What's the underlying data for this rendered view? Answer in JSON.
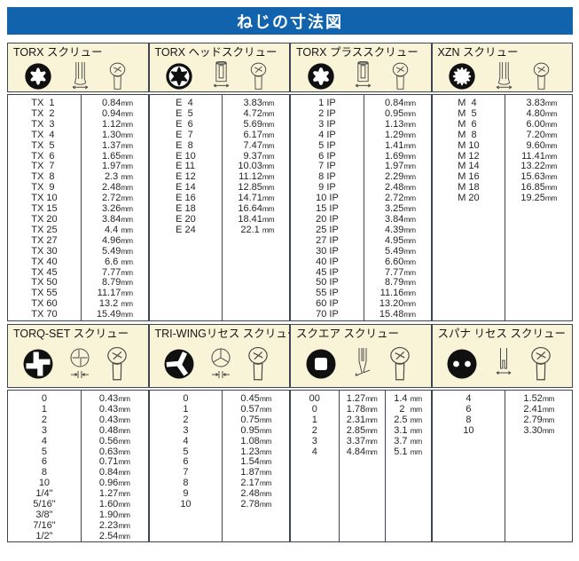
{
  "title": "ねじの寸法図",
  "unit": "mm",
  "panels": [
    {
      "title": "TORX スクリュー",
      "icons": [
        "torx-recess-icon",
        "torx-bit-side-icon",
        "screw-head-top-icon"
      ],
      "rows": [
        [
          "TX  1",
          "0.84"
        ],
        [
          "TX  2",
          "0.94"
        ],
        [
          "TX  3",
          "1.12"
        ],
        [
          "TX  4",
          "1.30"
        ],
        [
          "TX  5",
          "1.37"
        ],
        [
          "TX  6",
          "1.65"
        ],
        [
          "TX  7",
          "1.97"
        ],
        [
          "TX  8",
          "2.3 "
        ],
        [
          "TX  9",
          "2.48"
        ],
        [
          "TX 10",
          "2.72"
        ],
        [
          "TX 15",
          "3.26"
        ],
        [
          "TX 20",
          "3.84"
        ],
        [
          "TX 25",
          "4.4 "
        ],
        [
          "TX 27",
          "4.96"
        ],
        [
          "TX 30",
          "5.49"
        ],
        [
          "TX 40",
          "6.6 "
        ],
        [
          "TX 45",
          "7.77"
        ],
        [
          "TX 50",
          "8.79"
        ],
        [
          "TX 55",
          "11.17"
        ],
        [
          "TX 60",
          "13.2 "
        ],
        [
          "TX 70",
          "15.49"
        ]
      ]
    },
    {
      "title": "TORX ヘッドスクリュー",
      "icons": [
        "torx-head-icon",
        "torx-socket-side-icon",
        "screw-head-top-icon"
      ],
      "rows": [
        [
          "E  4",
          "3.83"
        ],
        [
          "E  5",
          "4.72"
        ],
        [
          "E  6",
          "5.69"
        ],
        [
          "E  7",
          "6.17"
        ],
        [
          "E  8",
          "7.47"
        ],
        [
          "E 10",
          "9.37"
        ],
        [
          "E 11",
          "10.03"
        ],
        [
          "E 12",
          "11.12"
        ],
        [
          "E 14",
          "12.85"
        ],
        [
          "E 16",
          "14.71"
        ],
        [
          "E 18",
          "16.64"
        ],
        [
          "E 20",
          "18.41"
        ],
        [
          "E 24",
          "22.1 "
        ]
      ]
    },
    {
      "title": "TORX プラススクリュー",
      "icons": [
        "torx-plus-recess-icon",
        "torx-socket-side-icon",
        "screw-head-top-icon"
      ],
      "rows": [
        [
          " 1 IP",
          "0.84"
        ],
        [
          " 2 IP",
          "0.95"
        ],
        [
          " 3 IP",
          "1.13"
        ],
        [
          " 4 IP",
          "1.29"
        ],
        [
          " 5 IP",
          "1.41"
        ],
        [
          " 6 IP",
          "1.69"
        ],
        [
          " 7 IP",
          "1.97"
        ],
        [
          " 8 IP",
          "2.29"
        ],
        [
          " 9 IP",
          "2.48"
        ],
        [
          "10 IP",
          "2.72"
        ],
        [
          "15 IP",
          "3.25"
        ],
        [
          "20 IP",
          "3.84"
        ],
        [
          "25 IP",
          "4.39"
        ],
        [
          "27 IP",
          "4.95"
        ],
        [
          "30 IP",
          "5.49"
        ],
        [
          "40 IP",
          "6.60"
        ],
        [
          "45 IP",
          "7.77"
        ],
        [
          "50 IP",
          "8.79"
        ],
        [
          "55 IP",
          "11.16"
        ],
        [
          "60 IP",
          "13.20"
        ],
        [
          "70 IP",
          "15.48"
        ]
      ]
    },
    {
      "title": "XZN スクリュー",
      "icons": [
        "xzn-recess-icon",
        "torx-bit-side-icon",
        "screw-head-top-icon"
      ],
      "rows": [
        [
          "M  4",
          "3.83"
        ],
        [
          "M  5",
          "4.80"
        ],
        [
          "M  6",
          "6.00"
        ],
        [
          "M  8",
          "7.20"
        ],
        [
          "M 10",
          "9.60"
        ],
        [
          "M 12",
          "11.41"
        ],
        [
          "M 14",
          "13.22"
        ],
        [
          "M 16",
          "15.63"
        ],
        [
          "M 18",
          "16.85"
        ],
        [
          "M 20",
          "19.25"
        ]
      ]
    },
    {
      "title": "TORQ-SET スクリュー",
      "icons": [
        "torq-set-recess-icon",
        "torq-set-head-outline-icon",
        "screw-head-top-icon"
      ],
      "rows": [
        [
          "0",
          "0.43"
        ],
        [
          "1",
          "0.43"
        ],
        [
          "2",
          "0.43"
        ],
        [
          "3",
          "0.48"
        ],
        [
          "4",
          "0.56"
        ],
        [
          "5",
          "0.63"
        ],
        [
          "6",
          "0.71"
        ],
        [
          "8",
          "0.84"
        ],
        [
          "10",
          "0.96"
        ],
        [
          "1/4\"",
          "1.27"
        ],
        [
          "5/16\"",
          "1.60"
        ],
        [
          "3/8\"",
          "1.90"
        ],
        [
          "7/16\"",
          "2.23"
        ],
        [
          "1/2\"",
          "2.54"
        ]
      ]
    },
    {
      "title": "TRI-WINGリセス スクリュー",
      "icons": [
        "tri-wing-recess-icon",
        "tri-wing-head-outline-icon",
        "screw-head-top-icon"
      ],
      "rows": [
        [
          "0",
          "0.45"
        ],
        [
          "1",
          "0.57"
        ],
        [
          "2",
          "0.75"
        ],
        [
          "3",
          "0.95"
        ],
        [
          "4",
          "1.08"
        ],
        [
          "5",
          "1.23"
        ],
        [
          "6",
          "1.54"
        ],
        [
          "7",
          "1.87"
        ],
        [
          "8",
          "2.17"
        ],
        [
          "9",
          "2.48"
        ],
        [
          "10",
          "2.78"
        ]
      ]
    },
    {
      "title": "スクエア スクリュー",
      "icons": [
        "square-recess-icon",
        "square-tip-side-icon",
        "screw-head-top-icon"
      ],
      "rows": [
        [
          "00",
          "1.27",
          "1.4 "
        ],
        [
          "0",
          "1.78",
          "2  "
        ],
        [
          "1",
          "2.31",
          "2.5 "
        ],
        [
          "2",
          "2.85",
          "3.1 "
        ],
        [
          "3",
          "3.37",
          "3.7 "
        ],
        [
          "4",
          "4.84",
          "5.1 "
        ]
      ]
    },
    {
      "title": "スパナ リセス スクリュー",
      "icons": [
        "spanner-recess-icon",
        "spanner-tip-side-icon",
        "screw-head-top-icon"
      ],
      "rows": [
        [
          "4",
          "1.52"
        ],
        [
          "6",
          "2.41"
        ],
        [
          "8",
          "2.79"
        ],
        [
          "10",
          "3.30"
        ]
      ]
    }
  ]
}
